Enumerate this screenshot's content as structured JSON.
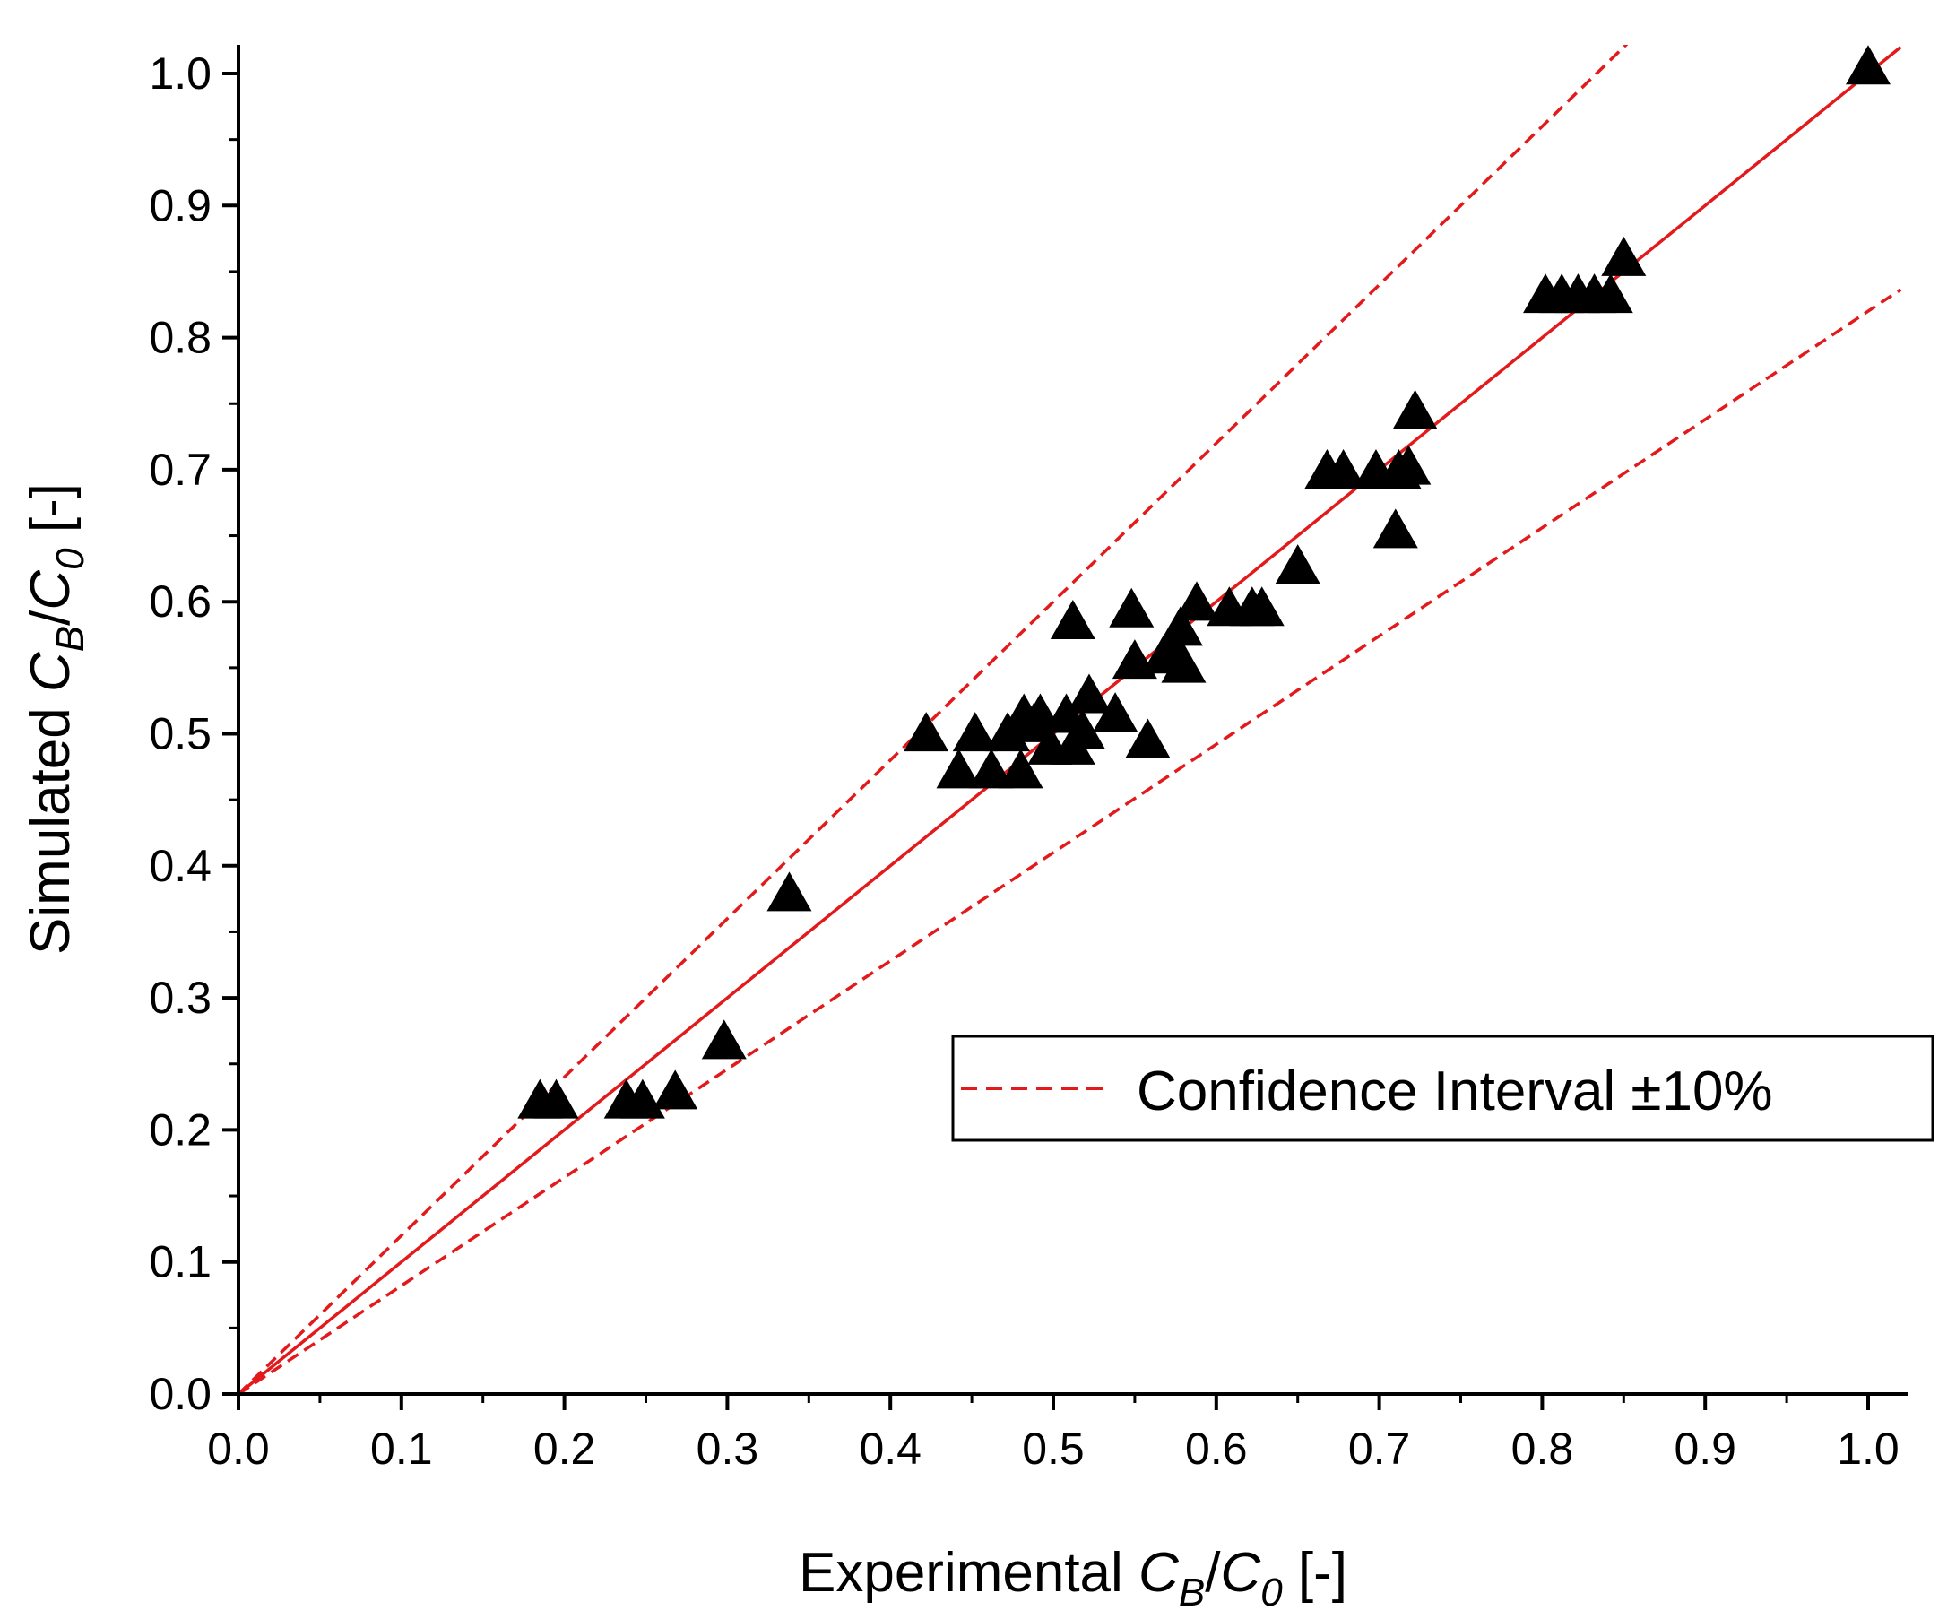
{
  "chart_data": {
    "type": "scatter",
    "xlabel": {
      "prefix": "Experimental ",
      "c1": "C",
      "sub1": "B",
      "slash": "/",
      "c2": "C",
      "sub2": "0",
      "suffix": " [-]"
    },
    "ylabel": {
      "prefix": "Simulated ",
      "c1": "C",
      "sub1": "B",
      "slash": "/",
      "c2": "C",
      "sub2": "0",
      "suffix": " [-]"
    },
    "xlim": [
      0.0,
      1.02
    ],
    "ylim": [
      0.0,
      1.02
    ],
    "x_ticks": [
      "0.0",
      "0.1",
      "0.2",
      "0.3",
      "0.4",
      "0.5",
      "0.6",
      "0.7",
      "0.8",
      "0.9",
      "1.0"
    ],
    "y_ticks": [
      "0.0",
      "0.1",
      "0.2",
      "0.3",
      "0.4",
      "0.5",
      "0.6",
      "0.7",
      "0.8",
      "0.9",
      "1.0"
    ],
    "legend": {
      "label": "Confidence Interval ±10%",
      "position": "center-right"
    },
    "lines": [
      {
        "name": "parity",
        "style": "solid",
        "color": "#e31a1c",
        "slope": 1.0
      },
      {
        "name": "upper-bound",
        "style": "dashed",
        "color": "#e31a1c",
        "slope": 1.2
      },
      {
        "name": "lower-bound",
        "style": "dashed",
        "color": "#e31a1c",
        "slope": 0.82
      }
    ],
    "series": [
      {
        "name": "data",
        "marker": "triangle",
        "color": "#000000",
        "points": [
          [
            0.185,
            0.22
          ],
          [
            0.195,
            0.22
          ],
          [
            0.238,
            0.22
          ],
          [
            0.248,
            0.22
          ],
          [
            0.268,
            0.227
          ],
          [
            0.298,
            0.265
          ],
          [
            0.338,
            0.377
          ],
          [
            0.422,
            0.498
          ],
          [
            0.442,
            0.47
          ],
          [
            0.452,
            0.498
          ],
          [
            0.462,
            0.47
          ],
          [
            0.472,
            0.498
          ],
          [
            0.48,
            0.47
          ],
          [
            0.482,
            0.512
          ],
          [
            0.488,
            0.505
          ],
          [
            0.492,
            0.512
          ],
          [
            0.498,
            0.488
          ],
          [
            0.508,
            0.512
          ],
          [
            0.512,
            0.583
          ],
          [
            0.512,
            0.488
          ],
          [
            0.518,
            0.5
          ],
          [
            0.522,
            0.527
          ],
          [
            0.538,
            0.513
          ],
          [
            0.548,
            0.592
          ],
          [
            0.55,
            0.553
          ],
          [
            0.558,
            0.493
          ],
          [
            0.568,
            0.557
          ],
          [
            0.572,
            0.565
          ],
          [
            0.578,
            0.578
          ],
          [
            0.58,
            0.55
          ],
          [
            0.588,
            0.597
          ],
          [
            0.608,
            0.593
          ],
          [
            0.622,
            0.593
          ],
          [
            0.628,
            0.593
          ],
          [
            0.65,
            0.625
          ],
          [
            0.668,
            0.697
          ],
          [
            0.678,
            0.697
          ],
          [
            0.698,
            0.697
          ],
          [
            0.71,
            0.652
          ],
          [
            0.712,
            0.697
          ],
          [
            0.718,
            0.7
          ],
          [
            0.722,
            0.742
          ],
          [
            0.802,
            0.83
          ],
          [
            0.812,
            0.83
          ],
          [
            0.822,
            0.83
          ],
          [
            0.832,
            0.83
          ],
          [
            0.842,
            0.83
          ],
          [
            0.85,
            0.858
          ],
          [
            1.0,
            1.003
          ]
        ]
      }
    ]
  }
}
